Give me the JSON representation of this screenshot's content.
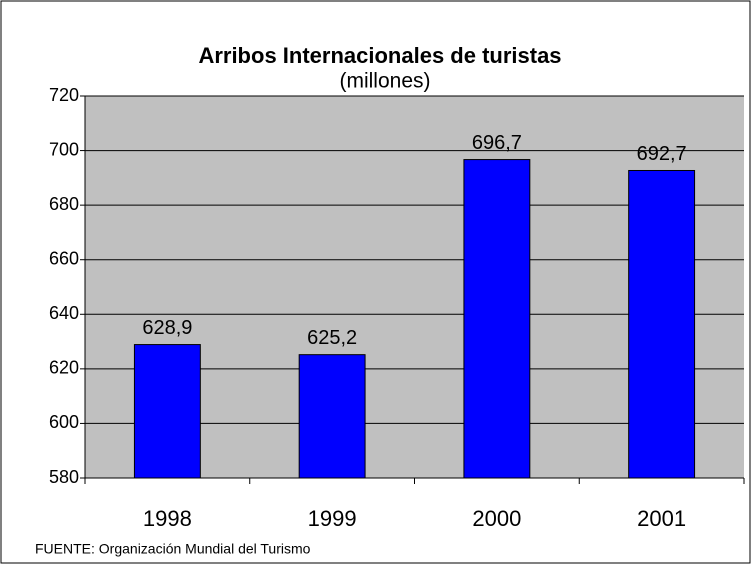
{
  "chart_data": {
    "type": "bar",
    "title": "Arribos Internacionales de turistas",
    "subtitle": "(millones)",
    "categories": [
      "1998",
      "1999",
      "2000",
      "2001"
    ],
    "values": [
      628.9,
      625.2,
      696.7,
      692.7
    ],
    "value_labels": [
      "628,9",
      "625,2",
      "696,7",
      "692,7"
    ],
    "color": "#0000ff",
    "ylim": [
      580,
      720
    ],
    "yticks": [
      580,
      600,
      620,
      640,
      660,
      680,
      700,
      720
    ],
    "grid": true,
    "source": "FUENTE: Organización Mundial del Turismo"
  }
}
